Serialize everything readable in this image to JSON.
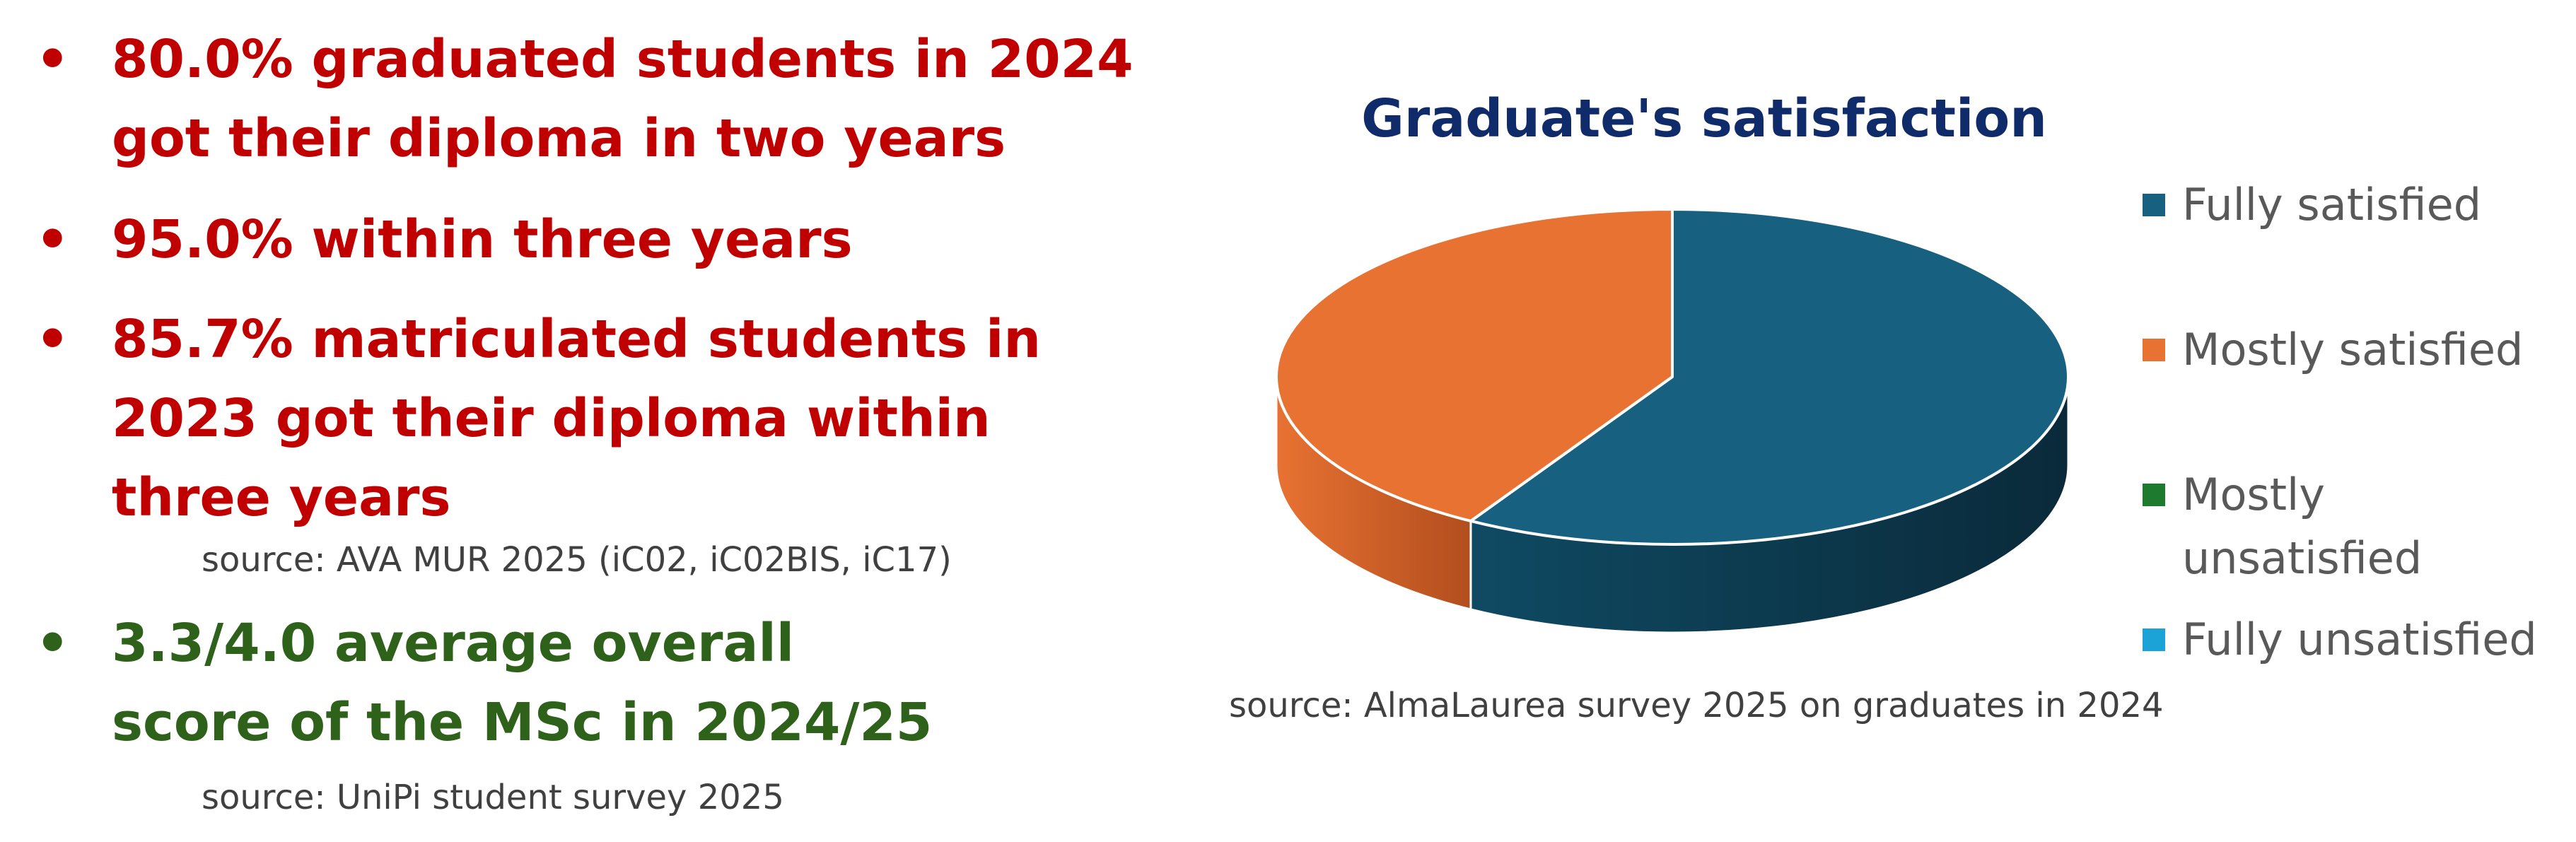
{
  "bullets": [
    {
      "lines": [
        "80.0% graduated students in 2024",
        "got their diploma in two years"
      ],
      "color": "#C00000"
    },
    {
      "lines": [
        "95.0% within three years"
      ],
      "color": "#C00000"
    },
    {
      "lines": [
        "85.7% matriculated students in",
        "2023 got their diploma within",
        "three years"
      ],
      "color": "#C00000"
    },
    {
      "lines": [
        "3.3/4.0 average overall",
        "score of the MSc in 2024/25"
      ],
      "color": "#2E6119"
    }
  ],
  "bullet_symbol": "•",
  "sources": {
    "mur": "source: AVA MUR 2025 (iC02, iC02BIS, iC17)",
    "unipi": "source: UniPi student survey 2025"
  },
  "chart_data": {
    "type": "pie",
    "title": "Graduate's satisfaction",
    "categories": [
      "Fully satisfied",
      "Mostly satisfied",
      "Mostly unsatisfied",
      "Fully unsatisfied"
    ],
    "values": [
      58.5,
      41.5,
      0,
      0
    ],
    "colors": [
      "#17607F",
      "#E87232",
      "#1E7A2E",
      "#1BA3D8"
    ],
    "legend_placement": "right",
    "source": "source: AlmaLaurea survey 2025 on graduates in 2024"
  },
  "legend_line_splits": {
    "Mostly unsatisfied": [
      "Mostly",
      "unsatisfied"
    ]
  }
}
